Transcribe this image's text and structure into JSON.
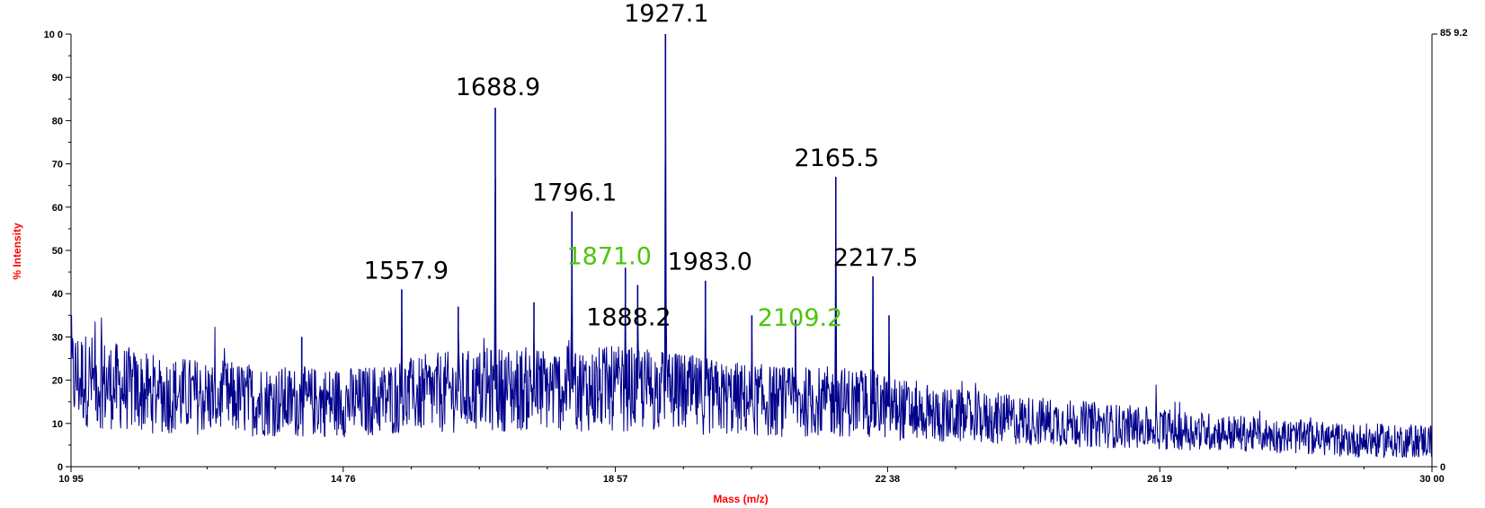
{
  "colors": {
    "trace": "#00008b",
    "axis": "#000000",
    "axis_title": "#ff0000",
    "label_default": "#000000",
    "label_highlight": "#4ec40a"
  },
  "chart_data": {
    "type": "line",
    "xlabel": "Mass (m/z)",
    "ylabel": "% Intensity",
    "xlim": [
      1095,
      3000
    ],
    "ylim": [
      0,
      100
    ],
    "x_tick_labels": [
      "10 95",
      "14 76",
      "18 57",
      "22 38",
      "26 19",
      "30 00"
    ],
    "x_tick_values": [
      1095,
      1476,
      1857,
      2238,
      2619,
      3000
    ],
    "y_tick_labels": [
      "0",
      "10",
      "20",
      "30",
      "40",
      "50",
      "60",
      "70",
      "80",
      "90",
      "10 0"
    ],
    "y_tick_values": [
      0,
      10,
      20,
      30,
      40,
      50,
      60,
      70,
      80,
      90,
      100
    ],
    "right_axis_labels": [
      "85 9.2",
      "0"
    ],
    "grid": false,
    "baseline": [
      {
        "x": 1095,
        "y": 21
      },
      {
        "x": 1200,
        "y": 17
      },
      {
        "x": 1300,
        "y": 16
      },
      {
        "x": 1400,
        "y": 15
      },
      {
        "x": 1500,
        "y": 15
      },
      {
        "x": 1600,
        "y": 17
      },
      {
        "x": 1700,
        "y": 18
      },
      {
        "x": 1800,
        "y": 18
      },
      {
        "x": 1900,
        "y": 18
      },
      {
        "x": 2000,
        "y": 16
      },
      {
        "x": 2100,
        "y": 15
      },
      {
        "x": 2200,
        "y": 15
      },
      {
        "x": 2300,
        "y": 12
      },
      {
        "x": 2400,
        "y": 11
      },
      {
        "x": 2500,
        "y": 10
      },
      {
        "x": 2600,
        "y": 9
      },
      {
        "x": 2700,
        "y": 8
      },
      {
        "x": 2800,
        "y": 7
      },
      {
        "x": 2900,
        "y": 6
      },
      {
        "x": 3000,
        "y": 6
      }
    ],
    "peaks": [
      {
        "x": 1557.9,
        "y": 41
      },
      {
        "x": 1688.9,
        "y": 83
      },
      {
        "x": 1796.1,
        "y": 59
      },
      {
        "x": 1871.0,
        "y": 46
      },
      {
        "x": 1888.2,
        "y": 42
      },
      {
        "x": 1927.1,
        "y": 100
      },
      {
        "x": 1983.0,
        "y": 43
      },
      {
        "x": 2109.2,
        "y": 34
      },
      {
        "x": 2165.5,
        "y": 67
      },
      {
        "x": 2217.5,
        "y": 44
      },
      {
        "x": 1637,
        "y": 37
      },
      {
        "x": 1743,
        "y": 38
      },
      {
        "x": 2240,
        "y": 35
      },
      {
        "x": 1418,
        "y": 30
      },
      {
        "x": 2048,
        "y": 35
      }
    ],
    "annotations": [
      {
        "text": "1557.9",
        "x": 1557.9,
        "y": 41,
        "highlight": false
      },
      {
        "text": "1688.9",
        "x": 1688.9,
        "y": 83,
        "highlight": false
      },
      {
        "text": "1796.1",
        "x": 1796.1,
        "y": 59,
        "highlight": false
      },
      {
        "text": "1871.0",
        "x": 1871.0,
        "y": 46,
        "highlight": true
      },
      {
        "text": "1888.2",
        "x": 1888.2,
        "y": 42,
        "highlight": false
      },
      {
        "text": "1927.1",
        "x": 1927.1,
        "y": 100,
        "highlight": false
      },
      {
        "text": "1983.0",
        "x": 1983.0,
        "y": 43,
        "highlight": false
      },
      {
        "text": "2109.2",
        "x": 2109.2,
        "y": 34,
        "highlight": true
      },
      {
        "text": "2165.5",
        "x": 2165.5,
        "y": 67,
        "highlight": false
      },
      {
        "text": "2217.5",
        "x": 2217.5,
        "y": 44,
        "highlight": false
      }
    ]
  }
}
